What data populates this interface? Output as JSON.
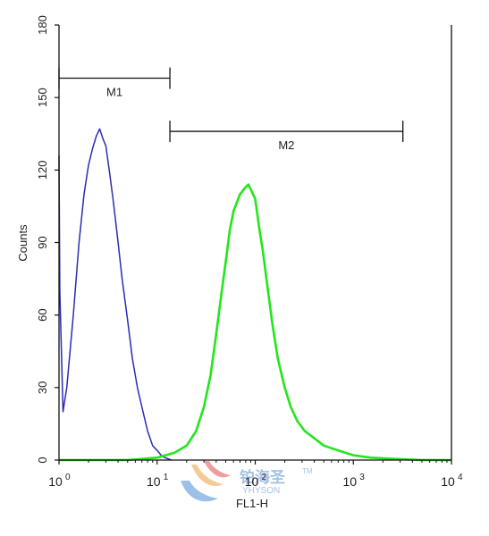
{
  "chart_data": {
    "type": "histogram",
    "x_scale": "log",
    "xlabel": "FL1-H",
    "ylabel": "Counts",
    "xlim": [
      1,
      10000
    ],
    "ylim": [
      0,
      180
    ],
    "y_ticks": [
      "0",
      "30",
      "60",
      "90",
      "120",
      "150",
      "180"
    ],
    "x_ticks": [
      {
        "value": 1,
        "base": "10",
        "exp": "0"
      },
      {
        "value": 10,
        "base": "10",
        "exp": "1"
      },
      {
        "value": 100,
        "base": "10",
        "exp": "2"
      },
      {
        "value": 1000,
        "base": "10",
        "exp": "3"
      },
      {
        "value": 10000,
        "base": "10",
        "exp": "4"
      }
    ],
    "gates": [
      {
        "name": "M1",
        "x_start": 1,
        "x_end": 13.5,
        "y_level": 158
      },
      {
        "name": "M2",
        "x_start": 13.5,
        "x_end": 3200,
        "y_level": 136
      }
    ],
    "series": [
      {
        "color": "#2b2bb5",
        "points": [
          [
            1,
            126
          ],
          [
            1.02,
            70
          ],
          [
            1.1,
            20
          ],
          [
            1.2,
            30
          ],
          [
            1.4,
            60
          ],
          [
            1.6,
            90
          ],
          [
            1.8,
            110
          ],
          [
            2.0,
            122
          ],
          [
            2.2,
            129
          ],
          [
            2.4,
            134
          ],
          [
            2.6,
            137
          ],
          [
            2.8,
            133
          ],
          [
            3.0,
            130
          ],
          [
            3.3,
            118
          ],
          [
            3.6,
            106
          ],
          [
            4.0,
            90
          ],
          [
            4.4,
            75
          ],
          [
            5.0,
            58
          ],
          [
            5.6,
            42
          ],
          [
            6.3,
            30
          ],
          [
            7.0,
            22
          ],
          [
            8.0,
            12
          ],
          [
            9.0,
            6
          ],
          [
            10,
            4
          ],
          [
            11,
            2
          ],
          [
            12,
            1
          ],
          [
            14,
            0
          ]
        ]
      },
      {
        "color": "#22e61a",
        "points": [
          [
            1,
            0
          ],
          [
            5,
            0
          ],
          [
            10,
            1
          ],
          [
            15,
            3
          ],
          [
            20,
            6
          ],
          [
            25,
            12
          ],
          [
            30,
            22
          ],
          [
            35,
            35
          ],
          [
            40,
            52
          ],
          [
            45,
            68
          ],
          [
            50,
            82
          ],
          [
            55,
            95
          ],
          [
            60,
            103
          ],
          [
            70,
            110
          ],
          [
            80,
            113
          ],
          [
            85,
            114
          ],
          [
            90,
            112
          ],
          [
            100,
            108
          ],
          [
            110,
            96
          ],
          [
            120,
            86
          ],
          [
            135,
            70
          ],
          [
            150,
            56
          ],
          [
            170,
            42
          ],
          [
            200,
            30
          ],
          [
            230,
            22
          ],
          [
            270,
            16
          ],
          [
            320,
            12
          ],
          [
            400,
            9
          ],
          [
            500,
            6
          ],
          [
            700,
            4
          ],
          [
            1000,
            2
          ],
          [
            1500,
            1
          ],
          [
            2500,
            0.5
          ],
          [
            5000,
            0
          ],
          [
            10000,
            0
          ]
        ]
      }
    ],
    "watermark": {
      "brand_cn": "铂海圣",
      "brand_en": "YHYSON",
      "mark": "TM"
    }
  }
}
